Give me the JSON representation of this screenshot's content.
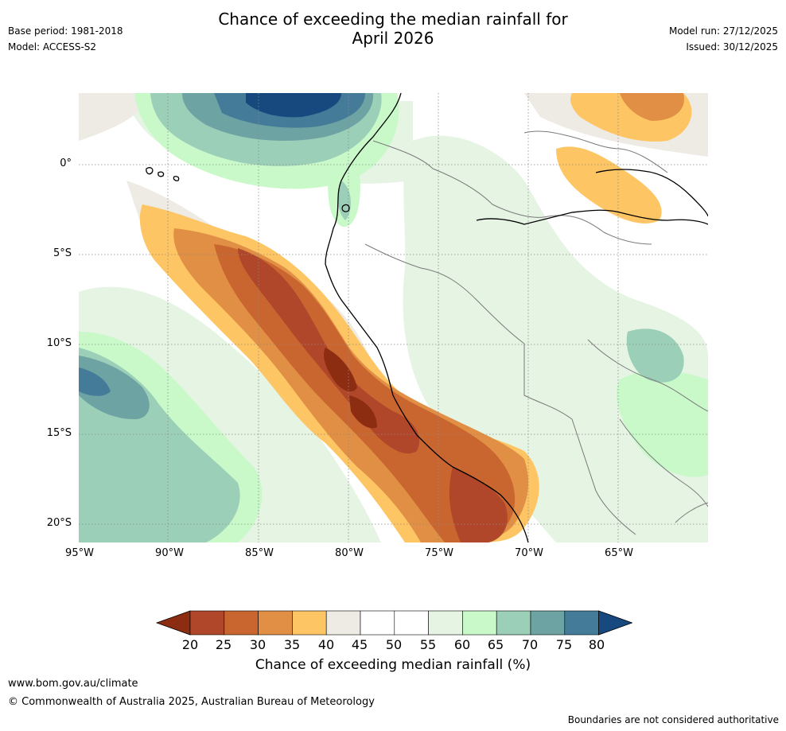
{
  "title_line1": "Chance of exceeding the median rainfall for",
  "title_line2": "April 2026",
  "base_period": "Base period: 1981-2018",
  "model": "Model: ACCESS-S2",
  "model_run": "Model run: 27/12/2025",
  "issued": "Issued: 30/12/2025",
  "map": {
    "lat_labels": [
      "0°",
      "5°S",
      "10°S",
      "15°S",
      "20°S"
    ],
    "lon_labels": [
      "95°W",
      "90°W",
      "85°W",
      "80°W",
      "75°W",
      "70°W",
      "65°W"
    ]
  },
  "colorbar": {
    "labels": [
      "20",
      "25",
      "30",
      "35",
      "40",
      "45",
      "50",
      "55",
      "60",
      "65",
      "70",
      "75",
      "80"
    ],
    "colors": [
      "#8c2d12",
      "#b0472a",
      "#c9652f",
      "#e08f44",
      "#fdc564",
      "#eeebe5",
      "#ffffff",
      "#ffffff",
      "#e6f4e4",
      "#c9f9c9",
      "#9ccfb8",
      "#6ea3a3",
      "#437b98",
      "#17497f"
    ],
    "title": "Chance of exceeding median rainfall (%)"
  },
  "footer_url": "www.bom.gov.au/climate",
  "copyright": "© Commonwealth of Australia 2025, Australian Bureau of Meteorology",
  "disclaimer": "Boundaries are not considered authoritative"
}
